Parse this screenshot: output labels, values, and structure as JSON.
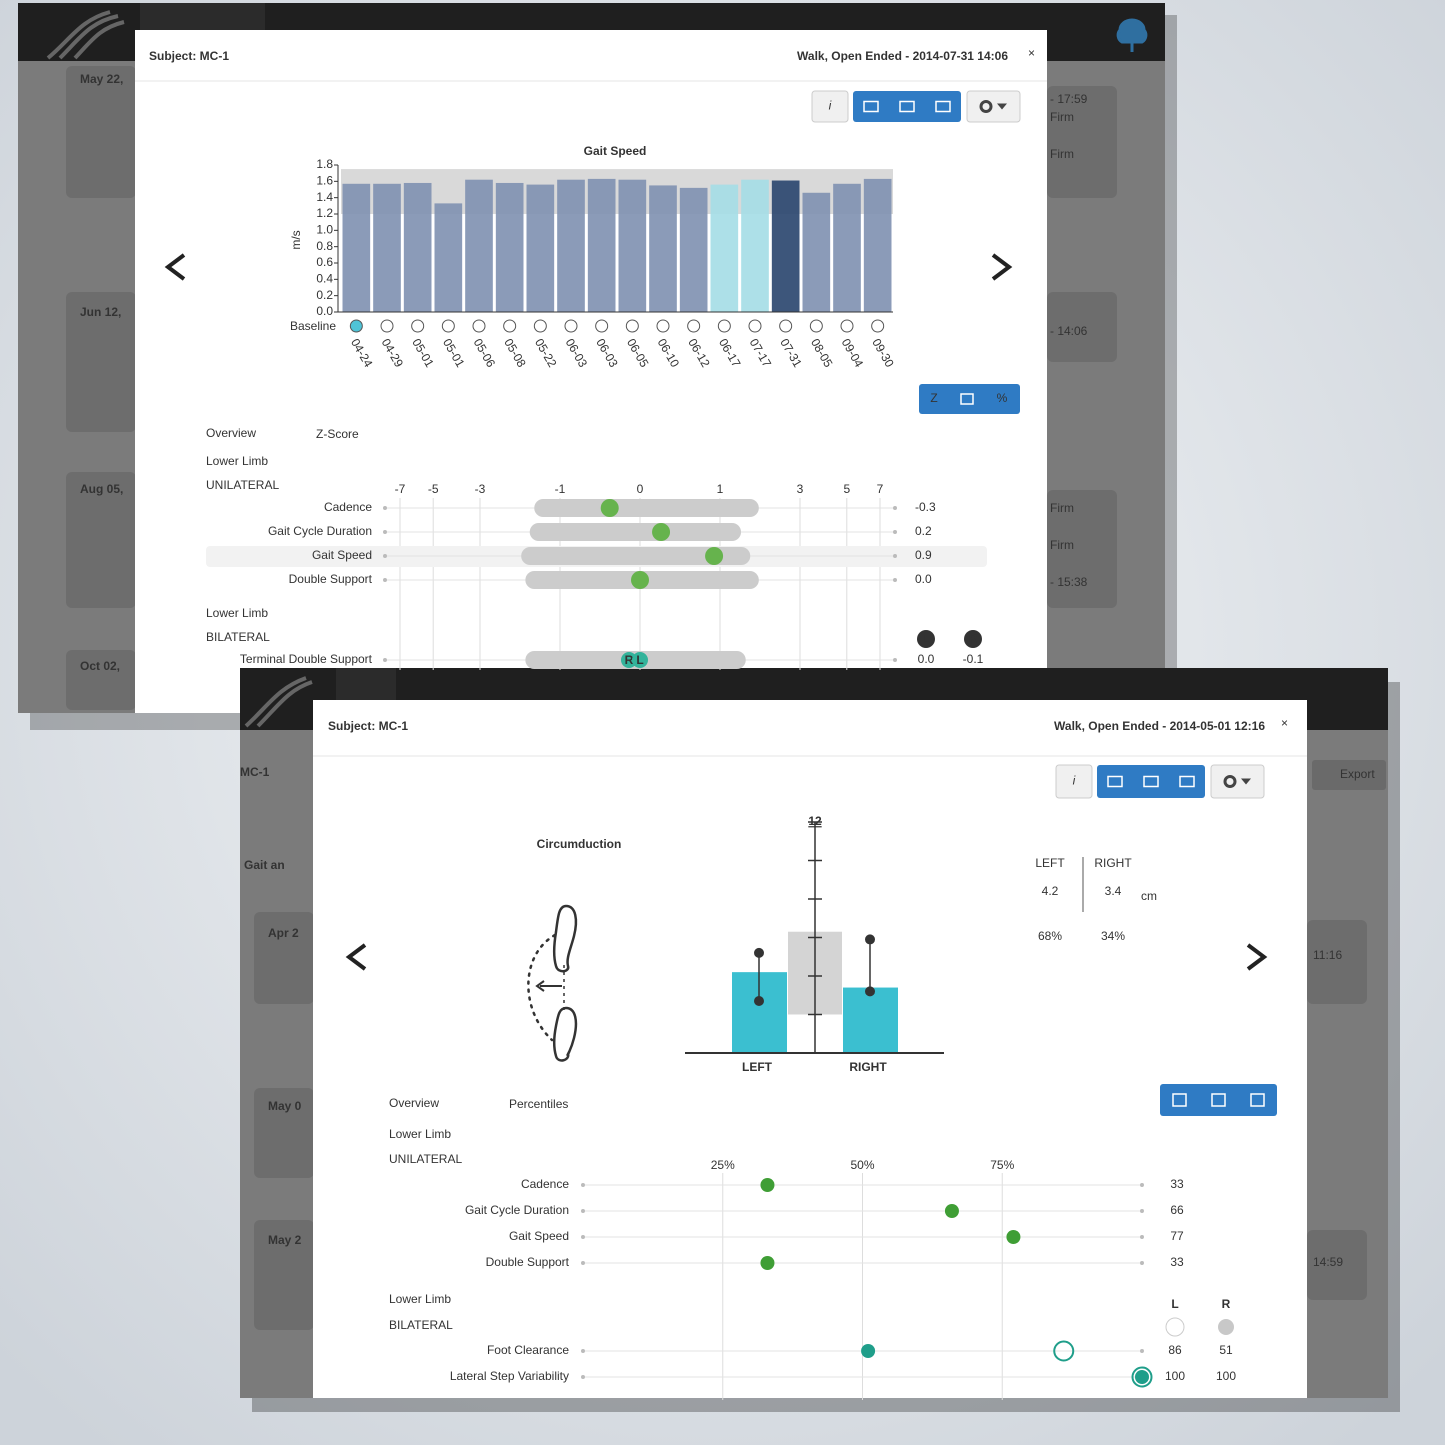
{
  "back": {
    "sidebar_dates": [
      "May 22,",
      "Jun 12,",
      "Aug 05,",
      "Oct 02,"
    ],
    "side_notes": [
      "- 17:59",
      "Firm",
      "Firm",
      "- 14:06",
      "Firm",
      "Firm",
      "- 15:38"
    ],
    "modal": {
      "subject": "Subject: MC-1",
      "session": "Walk, Open Ended - 2014-07-31 14:06",
      "gait_chart": {
        "type": "bar",
        "title": "Gait Speed",
        "y_label": "m/s",
        "x_label": "Baseline",
        "categories": [
          "04-24",
          "04-29",
          "05-01",
          "05-01",
          "05-06",
          "05-08",
          "05-22",
          "06-03",
          "06-03",
          "06-05",
          "06-10",
          "06-12",
          "06-17",
          "07-17",
          "07-31",
          "08-05",
          "09-04",
          "09-30"
        ],
        "values": [
          1.57,
          1.57,
          1.58,
          1.33,
          1.62,
          1.58,
          1.56,
          1.62,
          1.63,
          1.62,
          1.55,
          1.52,
          1.56,
          1.62,
          1.61,
          1.46,
          1.57,
          1.63
        ],
        "colors": [
          "#8193b2",
          "#8193b2",
          "#8193b2",
          "#8193b2",
          "#8193b2",
          "#8193b2",
          "#8193b2",
          "#8193b2",
          "#8193b2",
          "#8193b2",
          "#8193b2",
          "#8193b2",
          "#a6dde6",
          "#a6dde6",
          "#2c4870",
          "#8193b2",
          "#8193b2",
          "#8193b2"
        ],
        "baseline_band": [
          1.2,
          1.75
        ],
        "baseline_index": 0,
        "ylim": [
          0,
          1.8
        ],
        "yticks": [
          {
            "value": 0,
            "label": "0.0"
          },
          0.2,
          0.4,
          0.6,
          0.8,
          {
            "value": 1,
            "label": "1.0"
          },
          1.2,
          1.4,
          1.6,
          1.8
        ]
      },
      "scale_buttons": [
        "Z",
        "%"
      ],
      "overview": {
        "title": "Overview",
        "subtitle": "Z-Score",
        "xticks": [
          -7,
          -5,
          -3,
          -1,
          0,
          1,
          3,
          5,
          7
        ],
        "highlighted_row": 2,
        "unilateral": {
          "heading": "Lower Limb",
          "subheading": "UNILATERAL",
          "rows": [
            {
              "label": "Cadence",
              "value": -0.3,
              "range": [
                -1.5,
                1.8
              ]
            },
            {
              "label": "Gait Cycle Duration",
              "value": 0.2,
              "range": [
                -1.6,
                1.4
              ]
            },
            {
              "label": "Gait Speed",
              "value": 0.9,
              "range": [
                -1.8,
                1.6
              ]
            },
            {
              "label": "Double Support",
              "value": 0,
              "value_label": "0.0",
              "range": [
                -1.7,
                1.8
              ]
            }
          ]
        },
        "bilateral": {
          "heading": "Lower Limb",
          "subheading": "BILATERAL",
          "left_label": "L",
          "right_label": "R",
          "rows": [
            {
              "label": "Terminal Double Support",
              "left": 0,
              "left_value_label": "0.0",
              "right": -0.1,
              "range": [
                -1.7,
                1.5
              ]
            }
          ]
        }
      }
    }
  },
  "front": {
    "app_title": "MC-1",
    "section": "Gait an",
    "list_dates": [
      "Apr 2",
      "May 0",
      "May 2"
    ],
    "times": [
      "11:16",
      "14:59"
    ],
    "export": "Export",
    "modal": {
      "subject": "Subject: MC-1",
      "session": "Walk, Open Ended - 2014-05-01 12:16",
      "circumduction": {
        "type": "bar",
        "title": "Circumduction",
        "categories": [
          "LEFT",
          "RIGHT"
        ],
        "values": [
          4.2,
          3.4
        ],
        "color": "#3bbfd0",
        "ranges": [
          [
            2.7,
            5.2
          ],
          [
            3.2,
            5.9
          ]
        ],
        "norm_band": [
          2.0,
          6.3
        ],
        "ylim": [
          0,
          12
        ],
        "yticks": [
          12
        ],
        "yticks_minor": [
          2,
          4,
          6,
          8,
          10
        ],
        "unit": "cm",
        "percentiles": [
          68,
          34
        ],
        "percentile_labels": [
          "68%",
          "34%"
        ]
      },
      "overview": {
        "title": "Overview",
        "subtitle": "Percentiles",
        "xlim": [
          0,
          100
        ],
        "xticks": [
          {
            "value": 25,
            "label": "25%"
          },
          {
            "value": 50,
            "label": "50%"
          },
          {
            "value": 75,
            "label": "75%"
          }
        ],
        "unilateral": {
          "heading": "Lower Limb",
          "subheading": "UNILATERAL",
          "rows": [
            {
              "label": "Cadence",
              "value": 33
            },
            {
              "label": "Gait Cycle Duration",
              "value": 66
            },
            {
              "label": "Gait Speed",
              "value": 77
            },
            {
              "label": "Double Support",
              "value": 33
            }
          ]
        },
        "bilateral": {
          "heading": "Lower Limb",
          "subheading": "BILATERAL",
          "left_label": "L",
          "right_label": "R",
          "rows": [
            {
              "label": "Foot Clearance",
              "left": 86,
              "right": 51
            },
            {
              "label": "Lateral Step Variability",
              "left": 100,
              "right": 100
            }
          ]
        }
      }
    }
  }
}
